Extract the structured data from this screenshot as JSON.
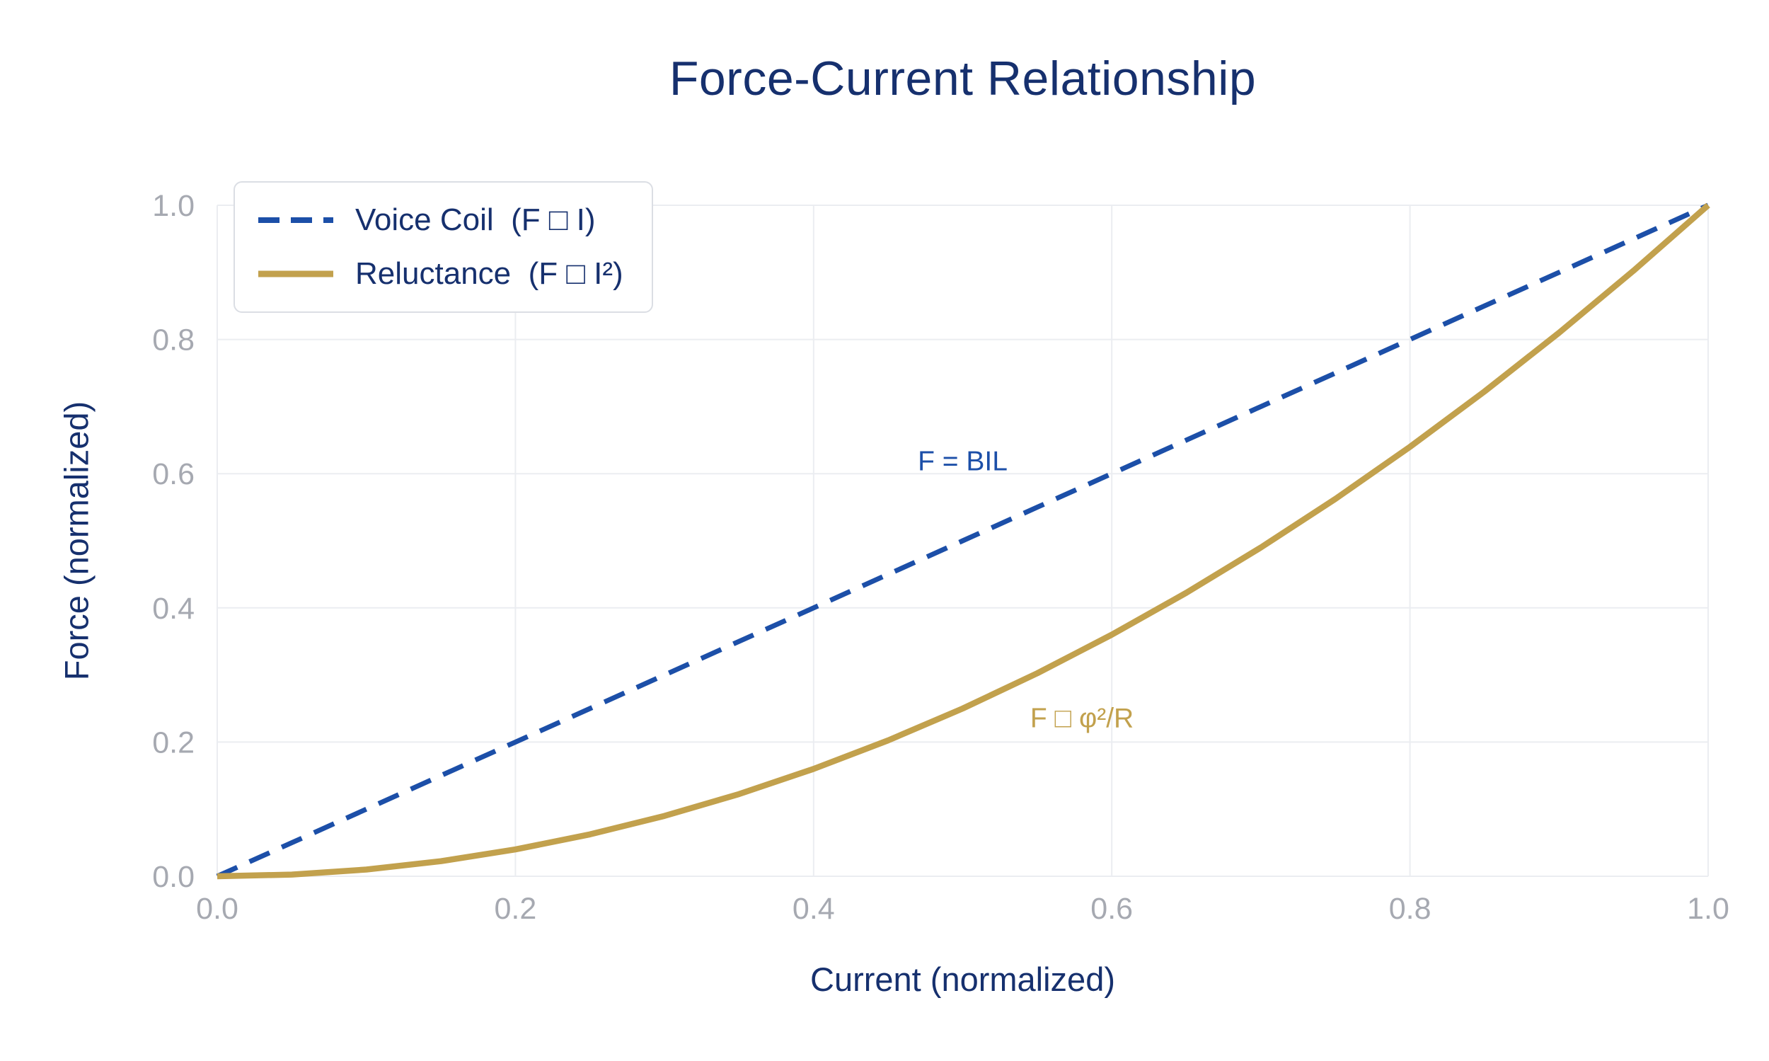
{
  "chart_data": {
    "type": "line",
    "title": "Force-Current Relationship",
    "xlabel": "Current (normalized)",
    "ylabel": "Force (normalized)",
    "xlim": [
      0,
      1
    ],
    "ylim": [
      0,
      1
    ],
    "xticks": [
      0,
      0.2,
      0.4,
      0.6,
      0.8,
      1
    ],
    "yticks": [
      0,
      0.2,
      0.4,
      0.6,
      0.8,
      1
    ],
    "tick_decimals": 1,
    "grid": true,
    "legend_position": "upper-left",
    "colors": {
      "title": "#16306e",
      "axis_label": "#16306e",
      "tick": "#a6a9b1",
      "grid": "#ebedf1",
      "legend_border": "#dbdee4",
      "background": "#ffffff"
    },
    "series": [
      {
        "name": "Voice Coil  (F □ I)",
        "style": "dashed",
        "color": "#1c4fa8",
        "x": [
          0,
          0.05,
          0.1,
          0.15,
          0.2,
          0.25,
          0.3,
          0.35,
          0.4,
          0.45,
          0.5,
          0.55,
          0.6,
          0.65,
          0.7,
          0.75,
          0.8,
          0.85,
          0.9,
          0.95,
          1
        ],
        "y": [
          0,
          0.05,
          0.1,
          0.15,
          0.2,
          0.25,
          0.3,
          0.35,
          0.4,
          0.45,
          0.5,
          0.55,
          0.6,
          0.65,
          0.7,
          0.75,
          0.8,
          0.85,
          0.9,
          0.95,
          1
        ]
      },
      {
        "name": "Reluctance  (F □ I²)",
        "style": "solid",
        "color": "#c2a14d",
        "x": [
          0,
          0.05,
          0.1,
          0.15,
          0.2,
          0.25,
          0.3,
          0.35,
          0.4,
          0.45,
          0.5,
          0.55,
          0.6,
          0.65,
          0.7,
          0.75,
          0.8,
          0.85,
          0.9,
          0.95,
          1
        ],
        "y": [
          0,
          0.0025,
          0.01,
          0.0225,
          0.04,
          0.0625,
          0.09,
          0.1225,
          0.16,
          0.2025,
          0.25,
          0.3025,
          0.36,
          0.4225,
          0.49,
          0.5625,
          0.64,
          0.7225,
          0.81,
          0.9025,
          1
        ]
      }
    ],
    "annotations": [
      {
        "text": "F = BIL",
        "x": 0.5,
        "y": 0.605,
        "color": "#1c4fa8"
      },
      {
        "text": "F □ φ²/R",
        "x": 0.58,
        "y": 0.222,
        "color": "#c2a14d"
      }
    ]
  }
}
